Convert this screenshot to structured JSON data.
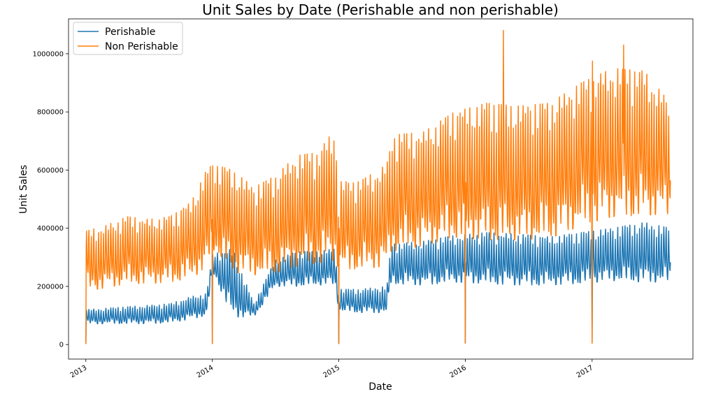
{
  "chart_data": {
    "type": "line",
    "title": "Unit Sales by Date (Perishable and non perishable)",
    "xlabel": "Date",
    "ylabel": "Unit Sales",
    "xlim": [
      "2012-11-12",
      "2017-10-19"
    ],
    "ylim": [
      -50000,
      1120000
    ],
    "x_ticks": [
      "2013",
      "2014",
      "2015",
      "2016",
      "2017"
    ],
    "y_ticks": [
      0,
      200000,
      400000,
      600000,
      800000,
      1000000
    ],
    "y_tick_labels": [
      "0",
      "200000",
      "400000",
      "600000",
      "800000",
      "1000000"
    ],
    "grid": false,
    "legend": "upper-left",
    "series": [
      {
        "name": "Perishable",
        "color": "#1f77b4",
        "weekly_band": {
          "x": [
            "2013-01-01",
            "2013-03-01",
            "2013-05-01",
            "2013-07-01",
            "2013-09-01",
            "2013-11-01",
            "2013-12-15",
            "2014-01-02",
            "2014-03-01",
            "2014-05-01",
            "2014-07-01",
            "2014-09-01",
            "2014-11-01",
            "2014-12-20",
            "2015-01-02",
            "2015-03-01",
            "2015-05-20",
            "2015-06-01",
            "2015-09-01",
            "2015-12-01",
            "2016-03-01",
            "2016-06-01",
            "2016-09-01",
            "2016-12-01",
            "2017-03-01",
            "2017-06-01",
            "2017-08-15"
          ],
          "low": [
            70000,
            72000,
            72000,
            72000,
            75000,
            88000,
            100000,
            250000,
            95000,
            95000,
            200000,
            200000,
            205000,
            205000,
            115000,
            110000,
            110000,
            210000,
            205000,
            215000,
            210000,
            205000,
            205000,
            210000,
            220000,
            215000,
            215000
          ],
          "high": [
            120000,
            125000,
            130000,
            135000,
            140000,
            165000,
            175000,
            310000,
            330000,
            140000,
            290000,
            320000,
            320000,
            330000,
            190000,
            190000,
            200000,
            345000,
            355000,
            375000,
            385000,
            380000,
            370000,
            385000,
            400000,
            420000,
            400000
          ]
        },
        "spikes": [
          {
            "x": "2013-01-01",
            "value": 2000
          },
          {
            "x": "2014-01-01",
            "value": 3000
          },
          {
            "x": "2015-01-01",
            "value": 3000
          },
          {
            "x": "2016-01-01",
            "value": 5000
          },
          {
            "x": "2017-01-01",
            "value": 5000
          }
        ]
      },
      {
        "name": "Non Perishable",
        "color": "#ff7f0e",
        "weekly_band": {
          "x": [
            "2013-01-01",
            "2013-03-01",
            "2013-05-01",
            "2013-07-01",
            "2013-09-01",
            "2013-11-01",
            "2013-12-15",
            "2014-01-02",
            "2014-03-01",
            "2014-05-01",
            "2014-07-01",
            "2014-09-01",
            "2014-11-01",
            "2014-12-20",
            "2015-01-02",
            "2015-03-01",
            "2015-05-20",
            "2015-06-01",
            "2015-09-01",
            "2015-12-01",
            "2016-03-01",
            "2016-06-01",
            "2016-09-01",
            "2016-12-01",
            "2017-03-01",
            "2017-06-01",
            "2017-08-15"
          ],
          "low": [
            185000,
            195000,
            210000,
            210000,
            215000,
            230000,
            260000,
            330000,
            250000,
            240000,
            245000,
            270000,
            280000,
            290000,
            260000,
            260000,
            270000,
            320000,
            340000,
            370000,
            360000,
            360000,
            365000,
            410000,
            440000,
            445000,
            450000
          ],
          "high": [
            390000,
            410000,
            440000,
            430000,
            440000,
            490000,
            600000,
            620000,
            600000,
            540000,
            580000,
            650000,
            660000,
            740000,
            560000,
            560000,
            620000,
            720000,
            730000,
            800000,
            830000,
            820000,
            830000,
            900000,
            950000,
            940000,
            830000
          ]
        },
        "spikes": [
          {
            "x": "2013-01-01",
            "value": 2000
          },
          {
            "x": "2014-01-01",
            "value": 3000
          },
          {
            "x": "2015-01-01",
            "value": 3000
          },
          {
            "x": "2016-01-01",
            "value": 5000
          },
          {
            "x": "2017-01-01",
            "value": 5000
          },
          {
            "x": "2016-04-20",
            "value": 1080000
          },
          {
            "x": "2017-04-02",
            "value": 1030000
          },
          {
            "x": "2017-01-02",
            "value": 975000
          }
        ]
      }
    ]
  }
}
